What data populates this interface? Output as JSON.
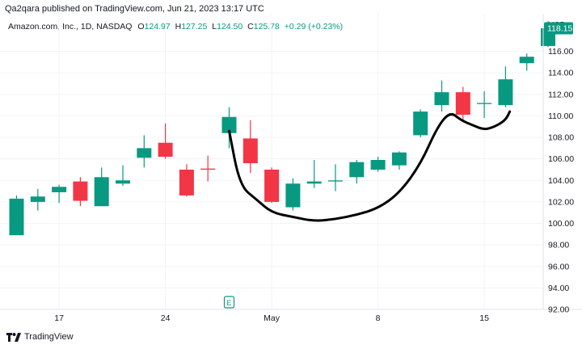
{
  "header": {
    "publisher": "Qa2qara published on TradingView.com, Jun 21, 2023 13:17 UTC"
  },
  "legend": {
    "symbol": "Amazon.com, Inc., 1D, NASDAQ",
    "open_label": "O",
    "open": "124.97",
    "high_label": "H",
    "high": "127.25",
    "low_label": "L",
    "low": "124.50",
    "close_label": "C",
    "close": "125.78",
    "change": "+0.29 (+0.23%)"
  },
  "footer": {
    "brand": "TradingView"
  },
  "event_marker": "E",
  "colors": {
    "up": "#089981",
    "down": "#f23645",
    "grid": "#f0f3fa",
    "text": "#131722"
  },
  "chart_data": {
    "type": "candlestick",
    "currency": "USD",
    "last_price": "118.15",
    "ylim": [
      92,
      119.5
    ],
    "y_ticks": [
      "92.00",
      "94.00",
      "96.00",
      "98.00",
      "100.00",
      "102.00",
      "104.00",
      "106.00",
      "108.00",
      "110.00",
      "112.00",
      "114.00",
      "116.00"
    ],
    "x_tick_labels": [
      {
        "label": "17",
        "index": 2
      },
      {
        "label": "24",
        "index": 7
      },
      {
        "label": "May",
        "index": 12
      },
      {
        "label": "8",
        "index": 17
      },
      {
        "label": "15",
        "index": 22
      }
    ],
    "event_index": 10,
    "candles": [
      {
        "o": 98.9,
        "h": 102.6,
        "l": 98.9,
        "c": 102.3
      },
      {
        "o": 102.0,
        "h": 103.2,
        "l": 101.2,
        "c": 102.5
      },
      {
        "o": 102.9,
        "h": 103.6,
        "l": 101.9,
        "c": 103.4
      },
      {
        "o": 103.9,
        "h": 104.3,
        "l": 101.6,
        "c": 102.1
      },
      {
        "o": 101.6,
        "h": 105.2,
        "l": 101.6,
        "c": 104.3
      },
      {
        "o": 103.7,
        "h": 105.4,
        "l": 103.5,
        "c": 104.0
      },
      {
        "o": 106.1,
        "h": 108.2,
        "l": 105.2,
        "c": 107.0
      },
      {
        "o": 107.5,
        "h": 109.3,
        "l": 106.0,
        "c": 106.2
      },
      {
        "o": 105.0,
        "h": 105.5,
        "l": 102.5,
        "c": 102.6
      },
      {
        "o": 105.1,
        "h": 106.3,
        "l": 103.9,
        "c": 105.0
      },
      {
        "o": 108.4,
        "h": 110.8,
        "l": 107.0,
        "c": 109.9
      },
      {
        "o": 107.9,
        "h": 109.6,
        "l": 104.7,
        "c": 105.6
      },
      {
        "o": 105.0,
        "h": 105.2,
        "l": 101.9,
        "c": 102.0
      },
      {
        "o": 101.5,
        "h": 104.2,
        "l": 101.2,
        "c": 103.7
      },
      {
        "o": 103.7,
        "h": 105.9,
        "l": 103.3,
        "c": 103.9
      },
      {
        "o": 103.9,
        "h": 105.5,
        "l": 103.0,
        "c": 104.0
      },
      {
        "o": 104.3,
        "h": 105.9,
        "l": 103.7,
        "c": 105.7
      },
      {
        "o": 105.0,
        "h": 106.2,
        "l": 104.8,
        "c": 105.9
      },
      {
        "o": 105.4,
        "h": 106.7,
        "l": 105.0,
        "c": 106.6
      },
      {
        "o": 108.2,
        "h": 110.6,
        "l": 108.0,
        "c": 110.4
      },
      {
        "o": 111.0,
        "h": 113.3,
        "l": 110.4,
        "c": 112.2
      },
      {
        "o": 112.2,
        "h": 112.7,
        "l": 109.6,
        "c": 110.1
      },
      {
        "o": 111.1,
        "h": 112.3,
        "l": 109.8,
        "c": 111.2
      },
      {
        "o": 111.0,
        "h": 114.6,
        "l": 110.8,
        "c": 113.4
      },
      {
        "o": 114.9,
        "h": 115.8,
        "l": 114.2,
        "c": 115.5
      },
      {
        "o": 116.5,
        "h": 118.8,
        "l": 116.4,
        "c": 118.15
      }
    ],
    "hand_drawn_curve": [
      [
        10,
        108.6
      ],
      [
        10.5,
        103.5
      ],
      [
        11.3,
        102.2
      ],
      [
        12.0,
        101.0
      ],
      [
        13,
        100.6
      ],
      [
        14,
        100.2
      ],
      [
        15,
        100.4
      ],
      [
        16,
        100.8
      ],
      [
        17,
        101.4
      ],
      [
        18,
        102.8
      ],
      [
        19,
        105.5
      ],
      [
        19.8,
        109.0
      ],
      [
        20.4,
        110.4
      ],
      [
        20.9,
        109.6
      ],
      [
        21.5,
        109.1
      ],
      [
        22.0,
        108.7
      ],
      [
        22.5,
        109.0
      ],
      [
        23.0,
        109.6
      ],
      [
        23.2,
        110.4
      ]
    ]
  }
}
